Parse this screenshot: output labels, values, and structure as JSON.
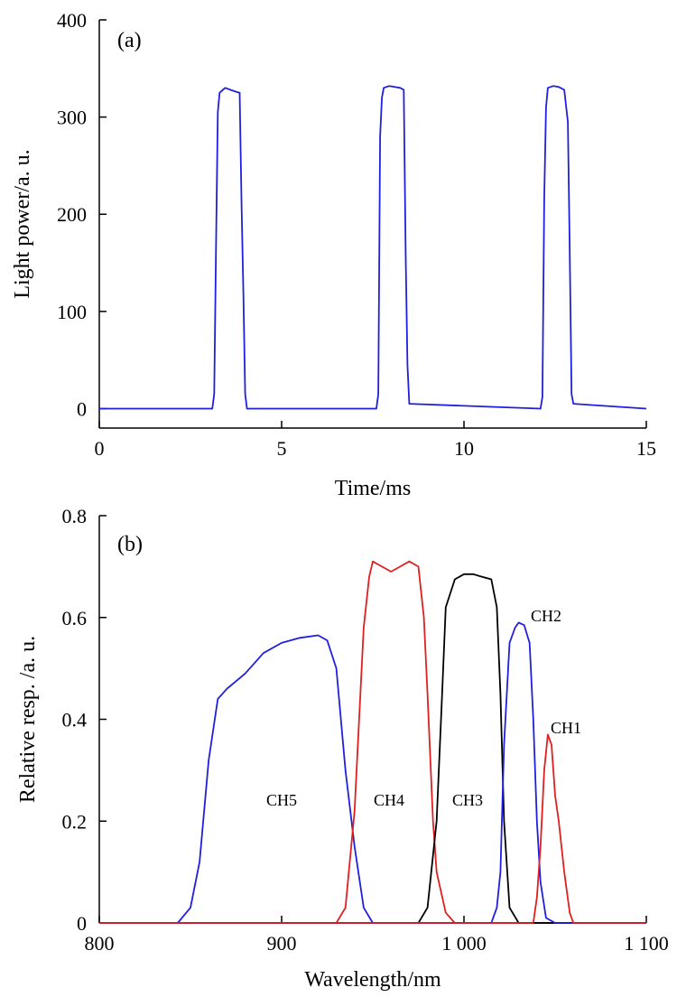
{
  "chart_data": [
    {
      "panel": "(a)",
      "type": "line",
      "xlabel": "Time/ms",
      "ylabel": "Light power/a. u.",
      "xlim": [
        0,
        15
      ],
      "ylim": [
        -20,
        400
      ],
      "xticks": [
        "0",
        "5",
        "10",
        "15"
      ],
      "yticks": [
        "0",
        "100",
        "200",
        "300",
        "400"
      ],
      "series": [
        {
          "color": "#1f1fe0",
          "x": [
            0,
            3.1,
            3.15,
            3.2,
            3.25,
            3.3,
            3.45,
            3.6,
            3.75,
            3.85,
            3.9,
            3.95,
            4.0,
            4.05,
            7.6,
            7.65,
            7.7,
            7.75,
            7.8,
            7.95,
            8.1,
            8.25,
            8.35,
            8.4,
            8.45,
            8.5,
            12.1,
            12.15,
            12.2,
            12.25,
            12.3,
            12.45,
            12.6,
            12.75,
            12.85,
            12.9,
            12.95,
            13.0,
            15
          ],
          "y": [
            0,
            0,
            15,
            165,
            305,
            325,
            330,
            328,
            326,
            325,
            210,
            120,
            15,
            0,
            0,
            15,
            280,
            320,
            330,
            332,
            331,
            330,
            328,
            160,
            45,
            5,
            0,
            12,
            215,
            310,
            330,
            332,
            331,
            328,
            295,
            160,
            15,
            5,
            0
          ]
        }
      ]
    },
    {
      "panel": "(b)",
      "type": "line",
      "xlabel": "Wavelength/nm",
      "ylabel": "Relative resp. /a. u.",
      "xlim": [
        800,
        1100
      ],
      "ylim": [
        0,
        0.8
      ],
      "xticks": [
        "800",
        "900",
        "1 000",
        "1 100"
      ],
      "yticks": [
        "0",
        "0.2",
        "0.4",
        "0.6",
        "0.8"
      ],
      "series": [
        {
          "name": "CH5",
          "color": "#1f1fe0",
          "x": [
            800,
            843,
            850,
            855,
            860,
            865,
            870,
            880,
            890,
            900,
            910,
            920,
            925,
            930,
            935,
            940,
            945,
            950,
            960,
            1100
          ],
          "y": [
            0,
            0,
            0.03,
            0.12,
            0.32,
            0.44,
            0.46,
            0.49,
            0.53,
            0.55,
            0.56,
            0.565,
            0.555,
            0.5,
            0.3,
            0.15,
            0.03,
            0,
            0,
            0
          ]
        },
        {
          "name": "CH4",
          "color": "#e01f1f",
          "x": [
            800,
            930,
            935,
            940,
            945,
            948,
            950,
            955,
            960,
            965,
            970,
            975,
            978,
            980,
            983,
            985,
            990,
            995,
            1100
          ],
          "y": [
            0,
            0,
            0.03,
            0.22,
            0.58,
            0.68,
            0.71,
            0.7,
            0.69,
            0.7,
            0.71,
            0.7,
            0.6,
            0.45,
            0.2,
            0.1,
            0.02,
            0,
            0
          ]
        },
        {
          "name": "CH3",
          "color": "#000000",
          "x": [
            800,
            975,
            980,
            985,
            988,
            990,
            995,
            1000,
            1005,
            1010,
            1015,
            1018,
            1020,
            1022,
            1025,
            1030,
            1100
          ],
          "y": [
            0,
            0,
            0.03,
            0.2,
            0.45,
            0.62,
            0.675,
            0.685,
            0.685,
            0.68,
            0.675,
            0.62,
            0.45,
            0.2,
            0.03,
            0,
            0
          ]
        },
        {
          "name": "CH2",
          "color": "#1f1fe0",
          "x": [
            800,
            1015,
            1018,
            1020,
            1022,
            1025,
            1028,
            1030,
            1033,
            1036,
            1038,
            1040,
            1042,
            1045,
            1050,
            1100
          ],
          "y": [
            0,
            0,
            0.03,
            0.1,
            0.35,
            0.55,
            0.58,
            0.59,
            0.585,
            0.55,
            0.4,
            0.2,
            0.08,
            0.01,
            0,
            0
          ]
        },
        {
          "name": "CH1",
          "color": "#e01f1f",
          "x": [
            800,
            1038,
            1040,
            1042,
            1044,
            1046,
            1048,
            1050,
            1052,
            1055,
            1058,
            1060,
            1100
          ],
          "y": [
            0,
            0,
            0.05,
            0.15,
            0.3,
            0.37,
            0.35,
            0.25,
            0.2,
            0.1,
            0.02,
            0,
            0
          ]
        }
      ]
    }
  ]
}
